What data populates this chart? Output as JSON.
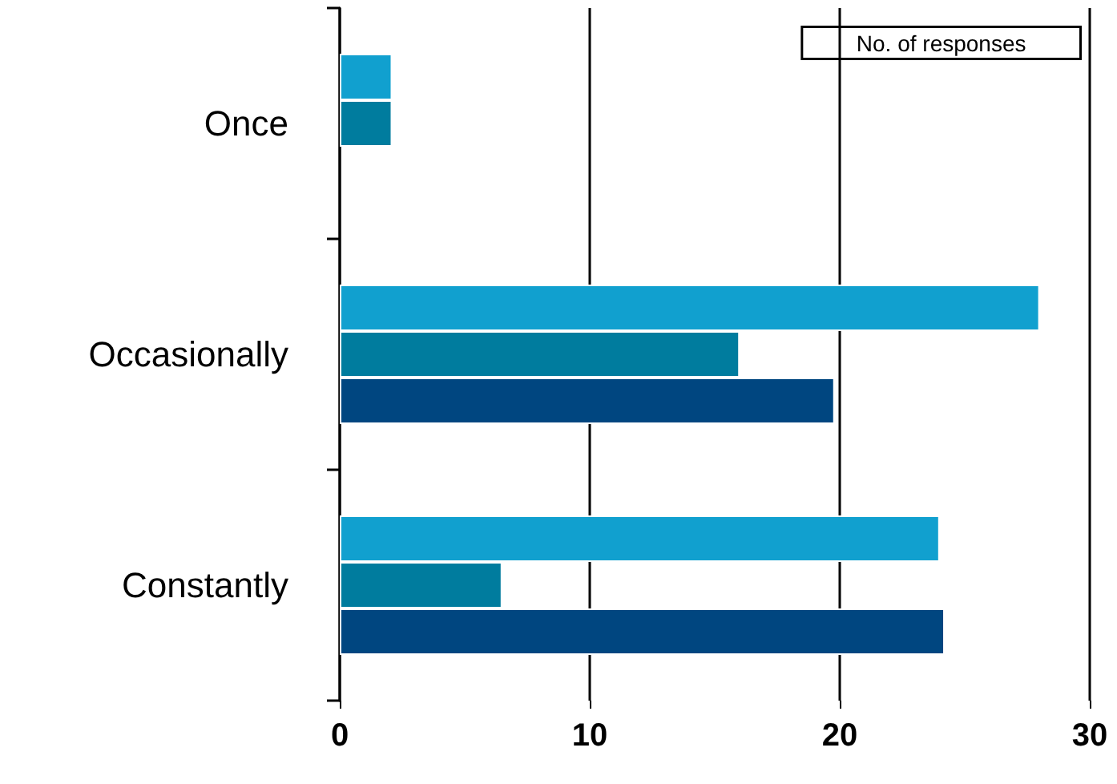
{
  "chart_data": {
    "type": "bar",
    "orientation": "horizontal",
    "categories": [
      "Once",
      "Occasionally",
      "Constantly"
    ],
    "series": [
      {
        "color": "#11a0cf",
        "values": [
          2.1,
          28,
          24
        ]
      },
      {
        "color": "#007c9e",
        "values": [
          2.1,
          16,
          6.5
        ]
      },
      {
        "color": "#004680",
        "values": [
          null,
          19.8,
          24.2
        ]
      }
    ],
    "xlim": [
      0,
      30
    ],
    "xticks": [
      0,
      10,
      20,
      30
    ],
    "grid": "x",
    "annotations": [
      "No. of responses"
    ]
  }
}
